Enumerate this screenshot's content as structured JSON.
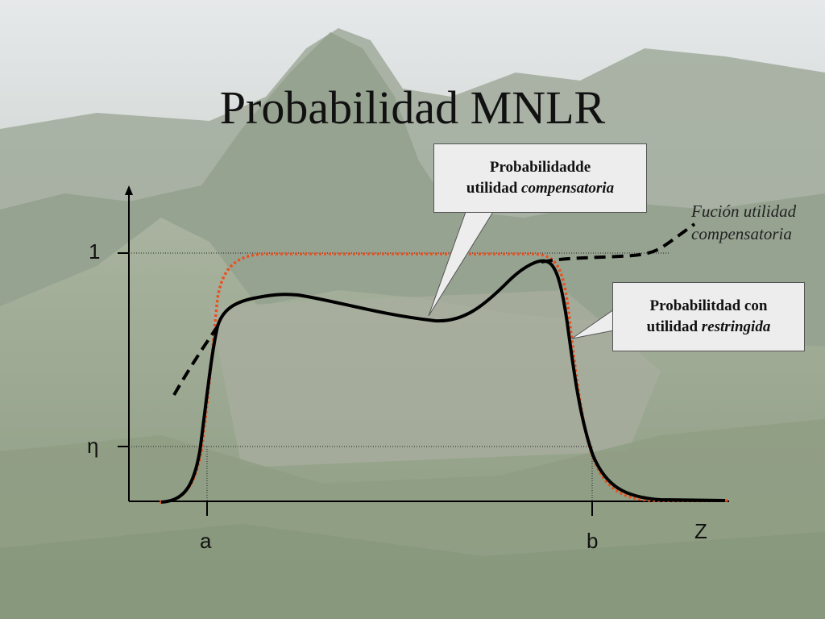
{
  "title": "Probabilidad MNLR",
  "y_ticks": {
    "one": "1",
    "eta": "η"
  },
  "x_ticks": {
    "a": "a",
    "b": "b"
  },
  "x_axis_label": "Z",
  "callouts": {
    "compensatoria": {
      "line1": "Probabilidadde",
      "line2_prefix": "utilidad ",
      "line2_italic": "compensatoria"
    },
    "restringida": {
      "line1": "Probabilitdad con",
      "line2_prefix": "utilidad ",
      "line2_italic": "restringida"
    }
  },
  "function_label": {
    "line1": "Fución utilidad",
    "line2": "compensatoria"
  },
  "colors": {
    "restricted_curve": "#e8501e",
    "compensatory_curve": "#000000",
    "axes": "#000000"
  }
}
